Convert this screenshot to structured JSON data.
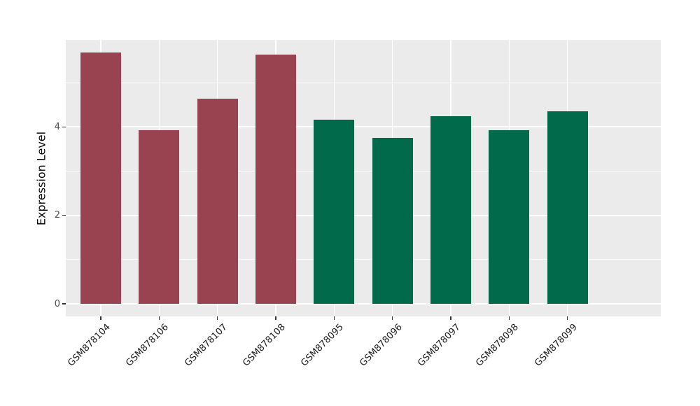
{
  "chart_data": {
    "type": "bar",
    "title": "",
    "xlabel": "",
    "ylabel": "Expression Level",
    "categories": [
      "GSM878104",
      "GSM878106",
      "GSM878107",
      "GSM878108",
      "GSM878095",
      "GSM878096",
      "GSM878097",
      "GSM878098",
      "GSM878099"
    ],
    "values": [
      5.69,
      3.93,
      4.64,
      5.63,
      4.16,
      3.76,
      4.25,
      3.93,
      4.35
    ],
    "bar_groups": [
      0,
      0,
      0,
      0,
      1,
      1,
      1,
      1,
      1
    ],
    "group_colors": [
      "#9A4350",
      "#006A4A"
    ],
    "ylim": [
      -0.285,
      5.97
    ],
    "yticks": [
      0,
      2,
      4
    ],
    "ytick_labels": [
      "0",
      "2",
      "4"
    ],
    "yticks_minor": [
      1,
      3,
      5
    ],
    "grid": true,
    "legend": "none",
    "panel_bg": "#EBEBEB",
    "grid_color": "#FFFFFF",
    "bar_width_fraction": 0.7,
    "category_padding": 0.6
  }
}
